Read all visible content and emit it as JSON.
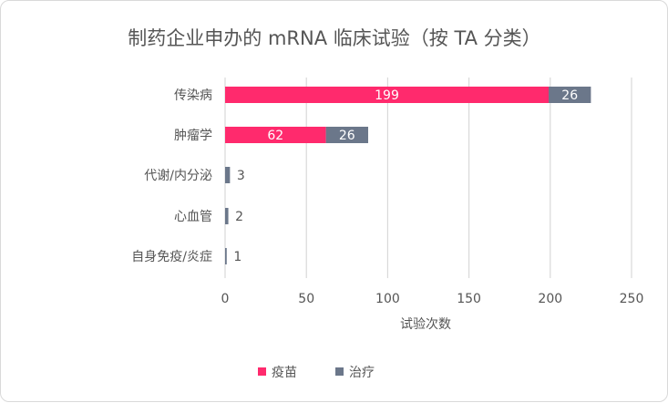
{
  "chart_data": {
    "type": "bar",
    "orientation": "horizontal",
    "stacked": true,
    "title": "制药企业申办的 mRNA 临床试验（按 TA 分类）",
    "xlabel": "试验次数",
    "ylabel": "",
    "categories": [
      "传染病",
      "肿瘤学",
      "代谢/内分泌",
      "心血管",
      "自身免疫/炎症"
    ],
    "series": [
      {
        "name": "疫苗",
        "color": "#ff2a6d",
        "values": [
          199,
          62,
          0,
          0,
          0
        ],
        "labels": [
          "199",
          "62",
          "",
          "",
          ""
        ]
      },
      {
        "name": "治疗",
        "color": "#6b778a",
        "values": [
          26,
          26,
          3,
          2,
          1
        ],
        "labels": [
          "26",
          "26",
          "3",
          "2",
          "1"
        ]
      }
    ],
    "xlim": [
      0,
      250
    ],
    "xticks": [
      "0",
      "50",
      "100",
      "150",
      "200",
      "250"
    ],
    "grid": true,
    "legend_position": "bottom"
  }
}
